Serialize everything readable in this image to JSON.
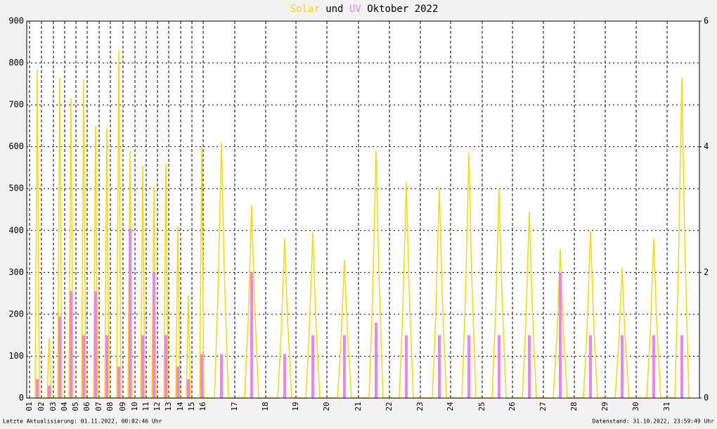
{
  "chart_data": {
    "type": "line",
    "title": "Oktober 2022",
    "title_join": "und",
    "footer_left": "Letzte Aktualisierung: 01.11.2022, 00:02:46 Uhr",
    "footer_right": "Datenstand: 31.10.2022, 23:59:49 Uhr",
    "grid": true,
    "background": "#f2f2f2",
    "xlim": [
      0,
      957
    ],
    "xticks": [
      {
        "value": 4,
        "label": "01"
      },
      {
        "value": 21,
        "label": "02"
      },
      {
        "value": 38,
        "label": "03"
      },
      {
        "value": 54,
        "label": "04"
      },
      {
        "value": 70,
        "label": "05"
      },
      {
        "value": 86,
        "label": "06"
      },
      {
        "value": 103,
        "label": "07"
      },
      {
        "value": 119,
        "label": "08"
      },
      {
        "value": 137,
        "label": "09"
      },
      {
        "value": 154,
        "label": "10"
      },
      {
        "value": 170,
        "label": "11"
      },
      {
        "value": 186,
        "label": "12"
      },
      {
        "value": 202,
        "label": "13"
      },
      {
        "value": 219,
        "label": "14"
      },
      {
        "value": 235,
        "label": "15"
      },
      {
        "value": 251,
        "label": "16"
      },
      {
        "value": 296,
        "label": "17"
      },
      {
        "value": 340,
        "label": "18"
      },
      {
        "value": 383,
        "label": "19"
      },
      {
        "value": 427,
        "label": "20"
      },
      {
        "value": 472,
        "label": "21"
      },
      {
        "value": 516,
        "label": "22"
      },
      {
        "value": 560,
        "label": "23"
      },
      {
        "value": 603,
        "label": "24"
      },
      {
        "value": 648,
        "label": "25"
      },
      {
        "value": 691,
        "label": "26"
      },
      {
        "value": 735,
        "label": "27"
      },
      {
        "value": 779,
        "label": "28"
      },
      {
        "value": 823,
        "label": "29"
      },
      {
        "value": 867,
        "label": "30"
      },
      {
        "value": 911,
        "label": "31"
      }
    ],
    "ylim": [
      0,
      900
    ],
    "yticks": [
      0,
      100,
      200,
      300,
      400,
      500,
      600,
      700,
      800,
      900
    ],
    "y2lim": [
      0,
      6
    ],
    "y2ticks": [
      0,
      2,
      4,
      6
    ],
    "series": [
      {
        "name": "Solar",
        "color": "#ffd700",
        "x": [
          12,
          15,
          18,
          29,
          32,
          35,
          44,
          47,
          50,
          60,
          63,
          66,
          78,
          81,
          84,
          95,
          98,
          101,
          111,
          114,
          117,
          128,
          131,
          134,
          144,
          147,
          150,
          162,
          165,
          168,
          178,
          181,
          184,
          195,
          198,
          201,
          212,
          215,
          218,
          227,
          230,
          233,
          246,
          249,
          252,
          267,
          272,
          277,
          281,
          287,
          310,
          315,
          320,
          324,
          330,
          357,
          362,
          367,
          371,
          377,
          397,
          402,
          407,
          411,
          417,
          442,
          447,
          452,
          456,
          462,
          487,
          492,
          497,
          501,
          507,
          530,
          535,
          540,
          544,
          550,
          577,
          582,
          587,
          591,
          597,
          619,
          624,
          629,
          633,
          639,
          662,
          667,
          672,
          676,
          682,
          705,
          710,
          715,
          719,
          725,
          749,
          754,
          759,
          763,
          769,
          792,
          797,
          802,
          806,
          812,
          837,
          842,
          847,
          851,
          857,
          882,
          887,
          892,
          896,
          902,
          922,
          927,
          932,
          936,
          942
        ],
        "values": [
          0,
          785,
          0,
          0,
          145,
          0,
          0,
          765,
          0,
          0,
          715,
          0,
          0,
          760,
          0,
          0,
          650,
          0,
          0,
          645,
          0,
          0,
          830,
          0,
          0,
          590,
          0,
          0,
          555,
          0,
          0,
          505,
          0,
          0,
          560,
          0,
          0,
          410,
          0,
          0,
          245,
          0,
          0,
          600,
          0,
          0,
          244,
          610,
          305,
          0,
          0,
          184,
          460,
          230,
          0,
          0,
          152,
          380,
          190,
          0,
          0,
          158,
          395,
          198,
          0,
          0,
          132,
          330,
          165,
          0,
          0,
          236,
          590,
          295,
          0,
          0,
          206,
          515,
          258,
          0,
          0,
          200,
          500,
          250,
          0,
          0,
          234,
          585,
          293,
          0,
          0,
          200,
          500,
          250,
          0,
          0,
          178,
          445,
          223,
          0,
          0,
          142,
          355,
          178,
          0,
          0,
          160,
          400,
          200,
          0,
          0,
          124,
          310,
          155,
          0,
          0,
          152,
          380,
          190,
          0,
          0,
          306,
          765,
          383,
          0
        ]
      },
      {
        "name": "UV",
        "color": "#ee82ee",
        "axis": "y2",
        "x": [
          15,
          32,
          47,
          63,
          81,
          98,
          114,
          131,
          147,
          165,
          181,
          198,
          215,
          230,
          249,
          277,
          320,
          367,
          407,
          452,
          497,
          540,
          587,
          629,
          672,
          715,
          759,
          802,
          847,
          892,
          932
        ],
        "values": [
          0.3,
          0.2,
          1.3,
          1.7,
          1,
          1.7,
          1,
          0.5,
          2.7,
          1,
          2,
          1,
          0.5,
          0.3,
          0.7,
          0.7,
          2,
          0.7,
          1,
          1,
          1.2,
          1,
          1,
          1,
          1,
          1,
          2,
          1,
          1,
          1,
          1
        ]
      }
    ]
  }
}
